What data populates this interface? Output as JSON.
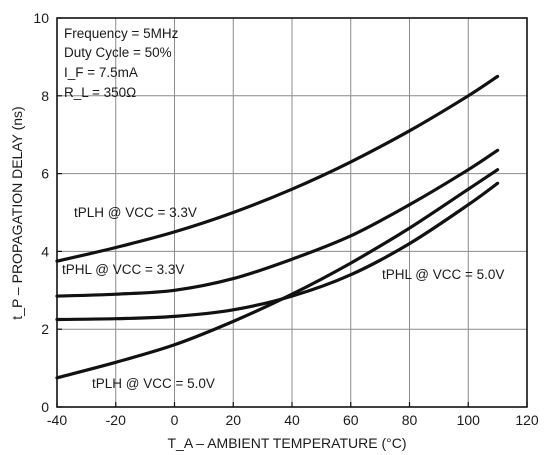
{
  "chart_data": {
    "type": "line",
    "xlabel": "T_A – AMBIENT TEMPERATURE (°C)",
    "ylabel": "t_P – PROPAGATION DELAY (ns)",
    "xlim": [
      -40,
      120
    ],
    "ylim": [
      0,
      10
    ],
    "xticks": [
      -40,
      -20,
      0,
      20,
      40,
      60,
      80,
      100,
      120
    ],
    "yticks": [
      0,
      2,
      4,
      6,
      8,
      10
    ],
    "grid": true,
    "conditions": [
      "Frequency = 5MHz",
      "Duty Cycle = 50%",
      "I_F = 7.5mA",
      "R_L = 350Ω"
    ],
    "series": [
      {
        "name": "tPLH @ VCC = 3.3V",
        "x": [
          -40,
          -20,
          0,
          20,
          40,
          60,
          80,
          100,
          110
        ],
        "y": [
          3.75,
          4.1,
          4.5,
          5.0,
          5.6,
          6.3,
          7.1,
          8.0,
          8.5
        ]
      },
      {
        "name": "tPHL @ VCC = 3.3V",
        "x": [
          -40,
          -20,
          0,
          20,
          40,
          60,
          80,
          100,
          110
        ],
        "y": [
          2.85,
          2.9,
          3.0,
          3.3,
          3.8,
          4.4,
          5.2,
          6.1,
          6.6
        ]
      },
      {
        "name": "tPHL @ VCC = 5.0V",
        "x": [
          -40,
          -20,
          0,
          20,
          40,
          60,
          80,
          100,
          110
        ],
        "y": [
          2.25,
          2.27,
          2.33,
          2.5,
          2.85,
          3.4,
          4.2,
          5.2,
          5.75
        ]
      },
      {
        "name": "tPLH @ VCC = 5.0V",
        "x": [
          -40,
          -20,
          0,
          20,
          40,
          60,
          80,
          100,
          110
        ],
        "y": [
          0.75,
          1.15,
          1.6,
          2.2,
          2.9,
          3.7,
          4.6,
          5.6,
          6.1
        ]
      }
    ]
  }
}
